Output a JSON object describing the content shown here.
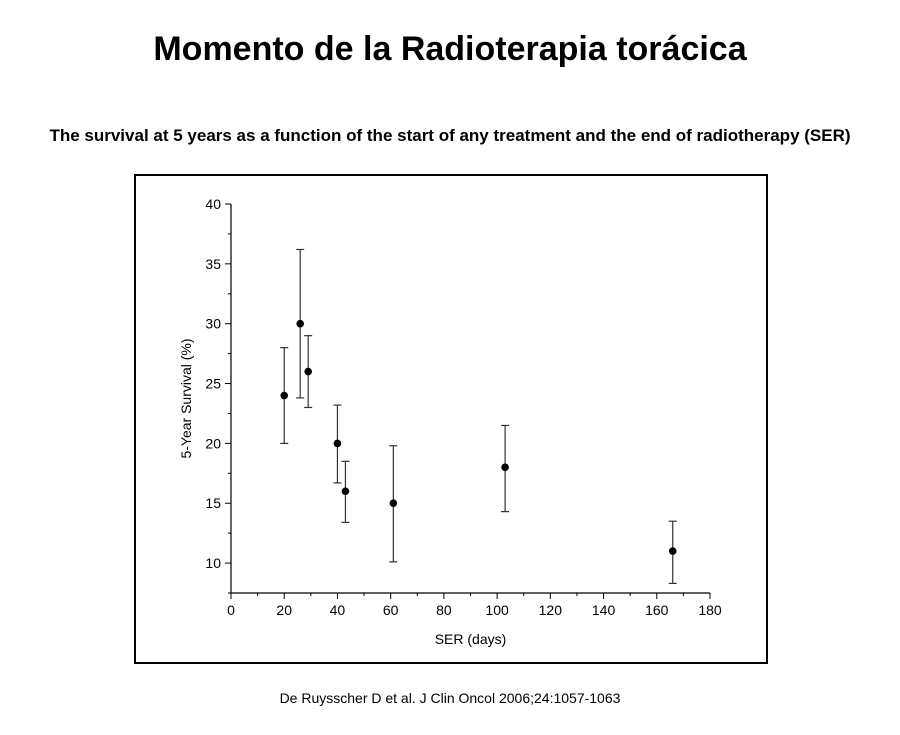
{
  "slide": {
    "title": "Momento de la Radioterapia torácica",
    "subtitle": "The survival at 5 years as a function of the start of any treatment and the end of radiotherapy (SER)",
    "citation": "De Ruysscher D et al. J Clin Oncol 2006;24:1057-1063"
  },
  "chart_data": {
    "type": "scatter",
    "title": "",
    "xlabel": "SER (days)",
    "ylabel": "5-Year Survival (%)",
    "xlim": [
      0,
      180
    ],
    "ylim": [
      7.5,
      40
    ],
    "xticks": [
      0,
      20,
      40,
      60,
      80,
      100,
      120,
      140,
      160,
      180
    ],
    "yticks": [
      10,
      15,
      20,
      25,
      30,
      35,
      40
    ],
    "grid": false,
    "legend": "none",
    "error_bars": true,
    "points": [
      {
        "x": 20,
        "y": 24,
        "low": 20,
        "high": 28
      },
      {
        "x": 26,
        "y": 30,
        "low": 23.8,
        "high": 36.2
      },
      {
        "x": 29,
        "y": 26,
        "low": 23,
        "high": 29
      },
      {
        "x": 40,
        "y": 20,
        "low": 16.7,
        "high": 23.2
      },
      {
        "x": 43,
        "y": 16,
        "low": 13.4,
        "high": 18.5
      },
      {
        "x": 61,
        "y": 15,
        "low": 10.1,
        "high": 19.8
      },
      {
        "x": 103,
        "y": 18,
        "low": 14.3,
        "high": 21.5
      },
      {
        "x": 166,
        "y": 11,
        "low": 8.3,
        "high": 13.5
      }
    ],
    "colors": {
      "marker": "#000000",
      "axis": "#000000",
      "errorbar": "#333333"
    }
  }
}
